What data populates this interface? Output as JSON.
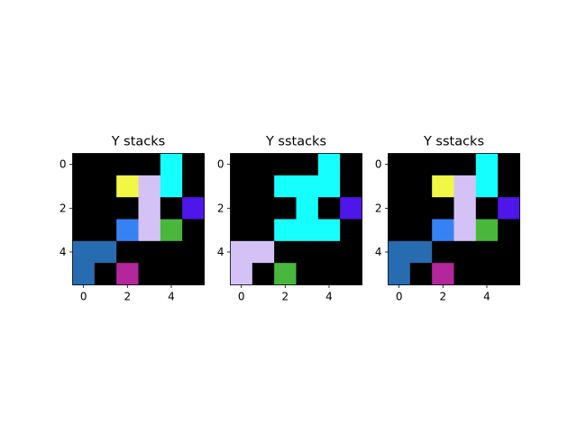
{
  "chart_data": [
    {
      "type": "heatmap",
      "title": "Y stacks",
      "xticks": [
        "0",
        "2",
        "4"
      ],
      "yticks": [
        "0",
        "2",
        "4"
      ],
      "grid": false,
      "palette": {
        "0": "#000000",
        "1": "#16ffff",
        "2": "#f0f845",
        "3": "#d4c2f6",
        "4": "#4e16e8",
        "5": "#3682f5",
        "6": "#49b73c",
        "7": "#276bb0",
        "8": "#b4279c"
      },
      "cells": [
        [
          0,
          0,
          0,
          0,
          1,
          0
        ],
        [
          0,
          0,
          2,
          3,
          1,
          0
        ],
        [
          0,
          0,
          0,
          3,
          0,
          4
        ],
        [
          0,
          0,
          5,
          3,
          6,
          0
        ],
        [
          7,
          7,
          0,
          0,
          0,
          0
        ],
        [
          7,
          0,
          8,
          0,
          0,
          0
        ]
      ]
    },
    {
      "type": "heatmap",
      "title": "Y sstacks",
      "xticks": [
        "0",
        "2",
        "4"
      ],
      "yticks": [
        "0",
        "2",
        "4"
      ],
      "grid": false,
      "palette": {
        "0": "#000000",
        "1": "#16ffff",
        "3": "#d4c2f6",
        "4": "#4e16e8",
        "6": "#49b73c"
      },
      "cells": [
        [
          0,
          0,
          0,
          0,
          1,
          0
        ],
        [
          0,
          0,
          1,
          1,
          1,
          0
        ],
        [
          0,
          0,
          0,
          1,
          0,
          4
        ],
        [
          0,
          0,
          1,
          1,
          1,
          0
        ],
        [
          3,
          3,
          0,
          0,
          0,
          0
        ],
        [
          3,
          0,
          6,
          0,
          0,
          0
        ]
      ]
    },
    {
      "type": "heatmap",
      "title": "Y sstacks",
      "xticks": [
        "0",
        "2",
        "4"
      ],
      "yticks": [
        "0",
        "2",
        "4"
      ],
      "grid": false,
      "palette": {
        "0": "#000000",
        "1": "#16ffff",
        "2": "#f0f845",
        "3": "#d4c2f6",
        "4": "#4e16e8",
        "5": "#3682f5",
        "6": "#49b73c",
        "7": "#276bb0",
        "8": "#b4279c"
      },
      "cells": [
        [
          0,
          0,
          0,
          0,
          1,
          0
        ],
        [
          0,
          0,
          2,
          3,
          1,
          0
        ],
        [
          0,
          0,
          0,
          3,
          0,
          4
        ],
        [
          0,
          0,
          5,
          3,
          6,
          0
        ],
        [
          7,
          7,
          0,
          0,
          0,
          0
        ],
        [
          7,
          0,
          8,
          0,
          0,
          0
        ]
      ]
    }
  ]
}
